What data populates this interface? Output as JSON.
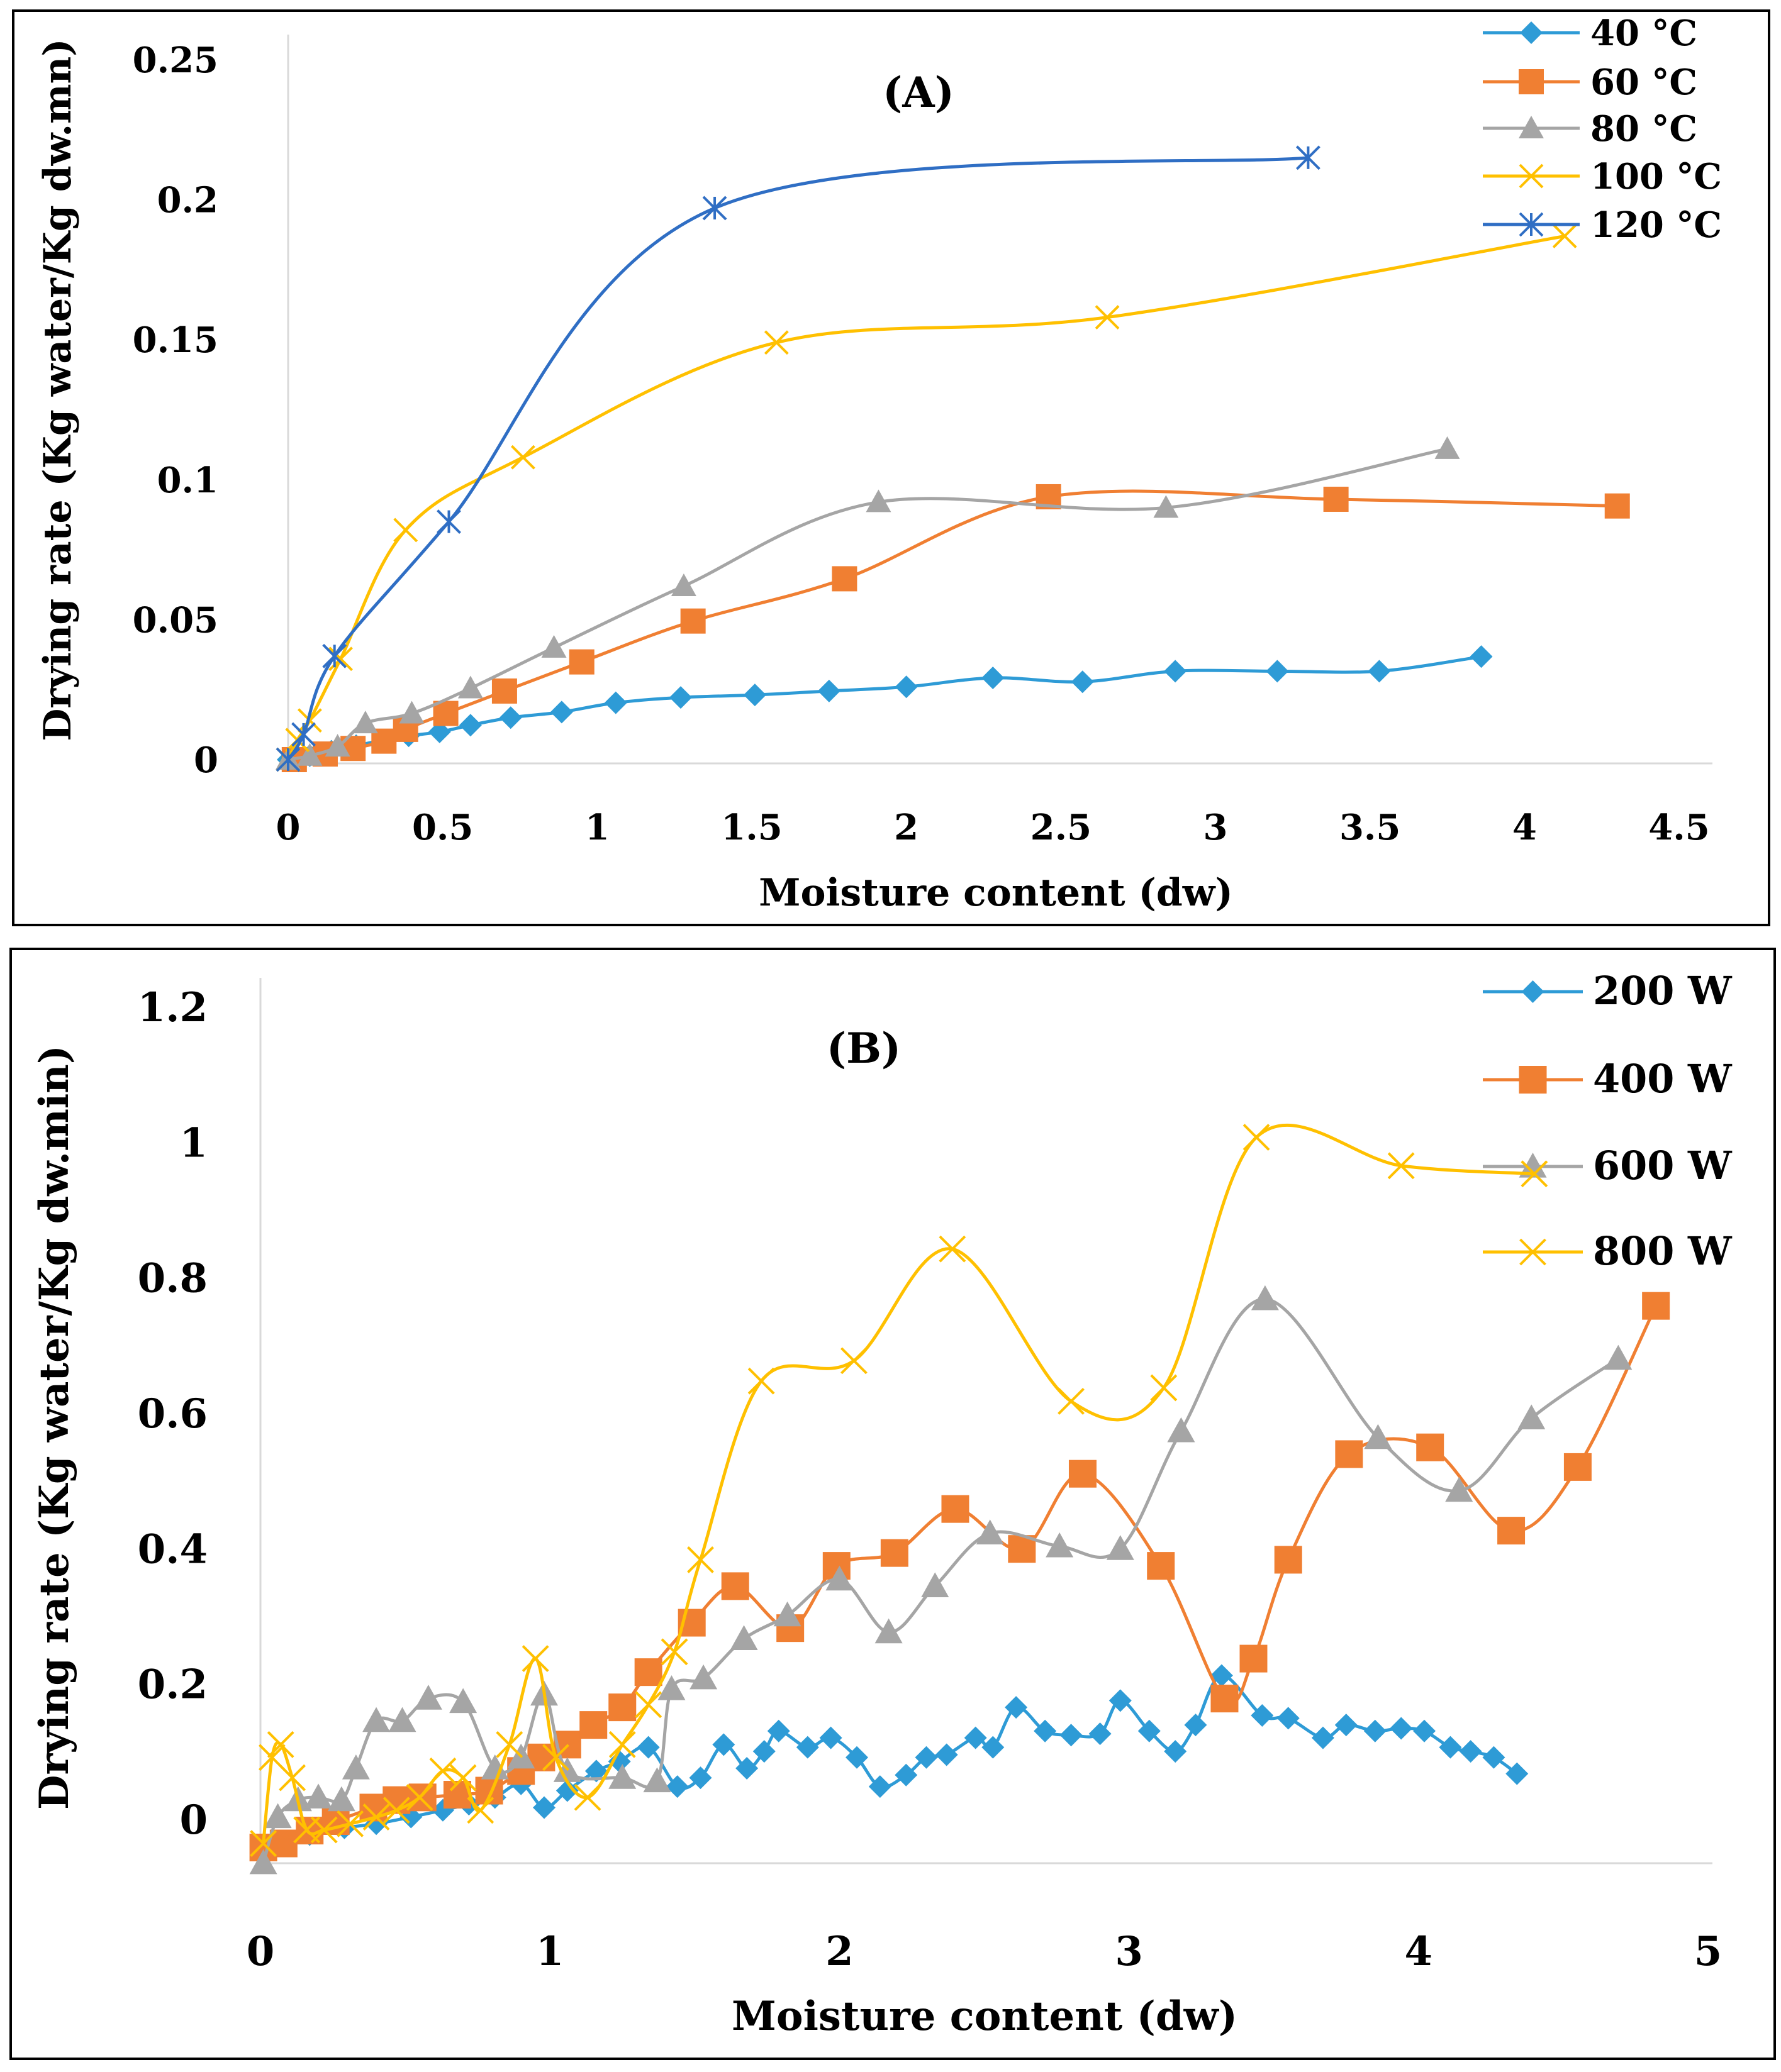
{
  "chart_data": [
    {
      "type": "line",
      "title": "(A)",
      "xlabel": "Moisture content (dw)",
      "ylabel": "Drying rate (Kg water/Kg dw.mn)",
      "xlim": [
        0,
        4.5
      ],
      "ylim": [
        0,
        0.25
      ],
      "xticks": [
        "0",
        "0.5",
        "1",
        "1.5",
        "2",
        "2.5",
        "3",
        "3.5",
        "4",
        "4.5"
      ],
      "yticks": [
        "0",
        "0.05",
        "0.1",
        "0.15",
        "0.2",
        "0.25"
      ],
      "grid": false,
      "legend_position": "top-right",
      "smooth": true,
      "series": [
        {
          "name": "40 °C",
          "color": "#2E9BD6",
          "marker": "diamond",
          "x": [
            0,
            0.07,
            0.14,
            0.22,
            0.31,
            0.39,
            0.49,
            0.59,
            0.72,
            0.885,
            1.06,
            1.27,
            1.51,
            1.75,
            2.0,
            2.28,
            2.57,
            2.87,
            3.2,
            3.53,
            3.86
          ],
          "y": [
            0,
            0.0014,
            0.003,
            0.005,
            0.007,
            0.0085,
            0.0099,
            0.0123,
            0.015,
            0.017,
            0.0203,
            0.0222,
            0.0231,
            0.0245,
            0.026,
            0.0292,
            0.0278,
            0.0316,
            0.0316,
            0.0316,
            0.0368
          ]
        },
        {
          "name": "60 °C",
          "color": "#F07F32",
          "marker": "square",
          "x": [
            0.02,
            0.12,
            0.21,
            0.31,
            0.38,
            0.51,
            0.7,
            0.95,
            1.31,
            1.8,
            2.46,
            3.39,
            4.3
          ],
          "y": [
            0,
            0.002,
            0.004,
            0.0066,
            0.0108,
            0.0165,
            0.0245,
            0.0349,
            0.0495,
            0.0646,
            0.0939,
            0.093,
            0.0906
          ]
        },
        {
          "name": "80 °C",
          "color": "#A5A5A5",
          "marker": "triangle",
          "x": [
            0,
            0.07,
            0.16,
            0.25,
            0.4,
            0.59,
            0.86,
            1.28,
            1.91,
            2.84,
            3.75
          ],
          "y": [
            0,
            0.0014,
            0.0047,
            0.013,
            0.0165,
            0.0255,
            0.04,
            0.062,
            0.092,
            0.09,
            0.111
          ]
        },
        {
          "name": "100 °C",
          "color": "#FFC000",
          "marker": "x",
          "x": [
            0,
            0.03,
            0.07,
            0.17,
            0.38,
            0.76,
            1.58,
            2.65,
            4.13
          ],
          "y": [
            0,
            0.007,
            0.014,
            0.036,
            0.082,
            0.108,
            0.149,
            0.158,
            0.187
          ]
        },
        {
          "name": "120 °C",
          "color": "#2F6EC4",
          "marker": "asterisk",
          "x": [
            0,
            0.05,
            0.15,
            0.52,
            1.38,
            3.3
          ],
          "y": [
            0,
            0.009,
            0.037,
            0.085,
            0.197,
            0.215
          ]
        }
      ]
    },
    {
      "type": "line",
      "title": "(B)",
      "xlabel": "Moisture content (dw)",
      "ylabel": "Drying rate (Kg water/Kg dw.min)",
      "xlim": [
        0,
        5
      ],
      "ylim": [
        0,
        1.2
      ],
      "xticks": [
        "0",
        "1",
        "2",
        "3",
        "4",
        "5"
      ],
      "yticks": [
        "0",
        "0.2",
        "0.4",
        "0.6",
        "0.8",
        "1",
        "1.2"
      ],
      "grid": false,
      "legend_position": "top-right",
      "smooth": true,
      "series": [
        {
          "name": "200 W",
          "color": "#2E9BD6",
          "marker": "diamond",
          "x": [
            0.01,
            0.08,
            0.17,
            0.29,
            0.4,
            0.52,
            0.63,
            0.72,
            0.81,
            0.9,
            0.98,
            1.06,
            1.16,
            1.24,
            1.34,
            1.44,
            1.52,
            1.6,
            1.68,
            1.74,
            1.79,
            1.89,
            1.97,
            2.06,
            2.14,
            2.23,
            2.3,
            2.37,
            2.47,
            2.53,
            2.61,
            2.71,
            2.8,
            2.9,
            2.97,
            3.07,
            3.16,
            3.23,
            3.32,
            3.46,
            3.55,
            3.67,
            3.75,
            3.85,
            3.94,
            4.02,
            4.11,
            4.18,
            4.26,
            4.34
          ],
          "y": [
            -0.053,
            -0.033,
            -0.02,
            -0.01,
            -0.004,
            0.006,
            0.016,
            0.025,
            0.035,
            0.055,
            0.02,
            0.045,
            0.074,
            0.088,
            0.109,
            0.051,
            0.064,
            0.113,
            0.078,
            0.103,
            0.133,
            0.109,
            0.123,
            0.094,
            0.051,
            0.068,
            0.094,
            0.098,
            0.123,
            0.109,
            0.168,
            0.133,
            0.127,
            0.129,
            0.178,
            0.133,
            0.103,
            0.142,
            0.215,
            0.156,
            0.152,
            0.123,
            0.142,
            0.133,
            0.137,
            0.133,
            0.109,
            0.103,
            0.094,
            0.07
          ]
        },
        {
          "name": "400 W",
          "color": "#F07F32",
          "marker": "square",
          "x": [
            0.01,
            0.08,
            0.17,
            0.26,
            0.39,
            0.47,
            0.56,
            0.68,
            0.79,
            0.9,
            0.97,
            1.06,
            1.15,
            1.25,
            1.34,
            1.49,
            1.64,
            1.83,
            1.99,
            2.19,
            2.4,
            2.63,
            2.84,
            3.11,
            3.33,
            3.43,
            3.55,
            3.76,
            4.04,
            4.32,
            4.55,
            4.82
          ],
          "y": [
            -0.039,
            -0.033,
            -0.014,
            0.0,
            0.02,
            0.031,
            0.035,
            0.039,
            0.045,
            0.074,
            0.094,
            0.113,
            0.142,
            0.168,
            0.22,
            0.293,
            0.347,
            0.285,
            0.377,
            0.396,
            0.461,
            0.402,
            0.513,
            0.377,
            0.181,
            0.24,
            0.386,
            0.542,
            0.552,
            0.429,
            0.523,
            0.761
          ]
        },
        {
          "name": "600 W",
          "color": "#A5A5A5",
          "marker": "triangle",
          "x": [
            0.01,
            0.06,
            0.13,
            0.2,
            0.28,
            0.33,
            0.4,
            0.49,
            0.58,
            0.7,
            0.81,
            0.9,
            0.98,
            1.06,
            1.25,
            1.37,
            1.42,
            1.53,
            1.67,
            1.82,
            2.0,
            2.17,
            2.33,
            2.52,
            2.76,
            2.97,
            3.18,
            3.47,
            3.86,
            4.14,
            4.39,
            4.69
          ],
          "y": [
            -0.062,
            0.006,
            0.031,
            0.035,
            0.031,
            0.078,
            0.148,
            0.148,
            0.181,
            0.176,
            0.078,
            0.094,
            0.187,
            0.074,
            0.064,
            0.059,
            0.195,
            0.211,
            0.269,
            0.304,
            0.357,
            0.279,
            0.347,
            0.425,
            0.406,
            0.402,
            0.576,
            0.771,
            0.566,
            0.488,
            0.595,
            0.683
          ]
        },
        {
          "name": "800 W",
          "color": "#FFC000",
          "marker": "x",
          "x": [
            0.01,
            0.04,
            0.07,
            0.11,
            0.16,
            0.22,
            0.31,
            0.4,
            0.47,
            0.55,
            0.63,
            0.7,
            0.76,
            0.86,
            0.95,
            1.02,
            1.13,
            1.25,
            1.34,
            1.43,
            1.52,
            1.73,
            2.05,
            2.39,
            2.8,
            3.12,
            3.44,
            3.94,
            4.4
          ],
          "y": [
            -0.033,
            0.094,
            0.113,
            0.064,
            -0.013,
            -0.013,
            -0.004,
            0.006,
            0.016,
            0.035,
            0.074,
            0.064,
            0.016,
            0.113,
            0.24,
            0.094,
            0.035,
            0.113,
            0.172,
            0.25,
            0.386,
            0.65,
            0.68,
            0.845,
            0.62,
            0.64,
            1.01,
            0.968,
            0.956
          ]
        }
      ]
    }
  ]
}
